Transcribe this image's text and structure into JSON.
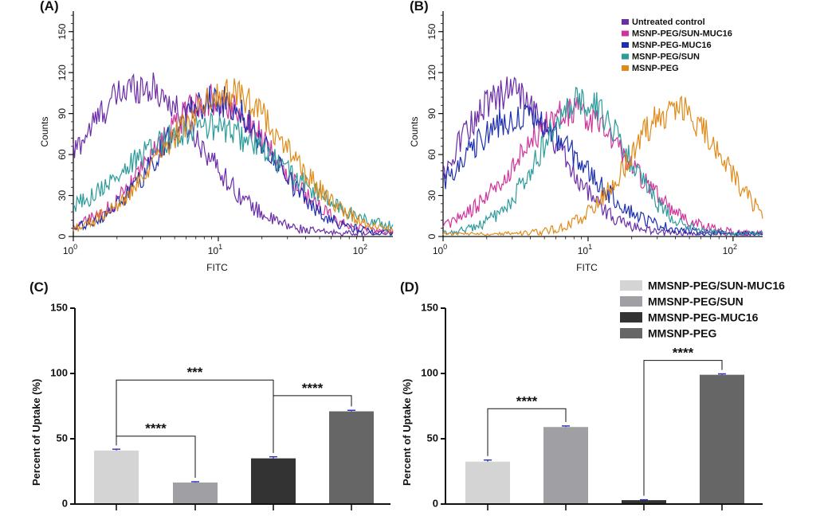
{
  "chart_data": [
    {
      "id": "A",
      "type": "line",
      "panel_label": "(A)",
      "xlabel": "FITC",
      "ylabel": "Counts",
      "xscale": "log",
      "xlim": [
        1,
        160
      ],
      "ylim": [
        0,
        165
      ],
      "yticks": [
        "0",
        "30",
        "60",
        "90",
        "120",
        "150"
      ],
      "xticks": [
        {
          "base": "10",
          "exp": "0"
        },
        {
          "base": "10",
          "exp": "1"
        },
        {
          "base": "10",
          "exp": "2"
        }
      ],
      "series": [
        {
          "name": "Untreated control",
          "color": "#6a2ca8",
          "peak_x": 2.9,
          "peak_y": 108,
          "sigma": 0.42
        },
        {
          "name": "MSNP-PEG/SUN-MUC16",
          "color": "#d0349c",
          "peak_x": 9.3,
          "peak_y": 98,
          "sigma": 0.4
        },
        {
          "name": "MSNP-PEG-MUC16",
          "color": "#1d2fb0",
          "peak_x": 9.4,
          "peak_y": 98,
          "sigma": 0.38
        },
        {
          "name": "MSNP-PEG/SUN",
          "color": "#2e9b9b",
          "peak_x": 8.2,
          "peak_y": 78,
          "sigma": 0.55
        },
        {
          "name": "MSNP-PEG",
          "color": "#e08a18",
          "peak_x": 11.5,
          "peak_y": 103,
          "sigma": 0.42
        }
      ]
    },
    {
      "id": "B",
      "type": "line",
      "panel_label": "(B)",
      "xlabel": "FITC",
      "ylabel": "Counts",
      "xscale": "log",
      "xlim": [
        1,
        160
      ],
      "ylim": [
        0,
        165
      ],
      "yticks": [
        "0",
        "30",
        "60",
        "90",
        "120",
        "150"
      ],
      "xticks": [
        {
          "base": "10",
          "exp": "0"
        },
        {
          "base": "10",
          "exp": "1"
        },
        {
          "base": "10",
          "exp": "2"
        }
      ],
      "legend": "top-right",
      "series": [
        {
          "name": "Untreated control",
          "color": "#6a2ca8",
          "peak_x": 2.8,
          "peak_y": 103,
          "sigma": 0.35
        },
        {
          "name": "MSNP-PEG/SUN-MUC16",
          "color": "#d0349c",
          "peak_x": 7.8,
          "peak_y": 90,
          "sigma": 0.38
        },
        {
          "name": "MSNP-PEG-MUC16",
          "color": "#1d2fb0",
          "peak_x": 3.4,
          "peak_y": 85,
          "sigma": 0.42
        },
        {
          "name": "MSNP-PEG/SUN",
          "color": "#2e9b9b",
          "peak_x": 9.2,
          "peak_y": 97,
          "sigma": 0.3
        },
        {
          "name": "MSNP-PEG",
          "color": "#e08a18",
          "peak_x": 40,
          "peak_y": 91,
          "sigma": 0.32
        }
      ]
    },
    {
      "id": "C",
      "type": "bar",
      "panel_label": "(C)",
      "ylabel": "Percent of Uptake (%)",
      "ylim": [
        0,
        150
      ],
      "yticks": [
        "0",
        "50",
        "100",
        "150"
      ],
      "categories": [
        "MMSNP-PEG/SUN-MUC16",
        "MMSNP-PEG/SUN",
        "MMSNP-PEG-MUC16",
        "MMSNP-PEG"
      ],
      "colors": [
        "#d4d4d4",
        "#a0a0a4",
        "#333333",
        "#666666"
      ],
      "values": [
        41,
        16.5,
        35,
        71
      ],
      "errors": [
        1,
        0.6,
        1.2,
        0.8
      ],
      "brackets": [
        {
          "from": 0,
          "to": 1,
          "y": 52,
          "label": "****"
        },
        {
          "from": 0,
          "to": 2,
          "y": 95,
          "label": "***"
        },
        {
          "from": 2,
          "to": 3,
          "y": 83,
          "label": "****"
        }
      ]
    },
    {
      "id": "D",
      "type": "bar",
      "panel_label": "(D)",
      "ylabel": "Percent of Uptake (%)",
      "ylim": [
        0,
        150
      ],
      "yticks": [
        "0",
        "50",
        "100",
        "150"
      ],
      "categories": [
        "MMSNP-PEG/SUN-MUC16",
        "MMSNP-PEG/SUN",
        "MMSNP-PEG-MUC16",
        "MMSNP-PEG"
      ],
      "colors": [
        "#d4d4d4",
        "#a0a0a4",
        "#333333",
        "#666666"
      ],
      "values": [
        32.5,
        59,
        3,
        99
      ],
      "errors": [
        1.2,
        0.8,
        0.3,
        0.7
      ],
      "legend": "top-right",
      "brackets": [
        {
          "from": 0,
          "to": 1,
          "y": 73,
          "label": "****"
        },
        {
          "from": 2,
          "to": 3,
          "y": 110,
          "label": "****"
        }
      ]
    }
  ]
}
